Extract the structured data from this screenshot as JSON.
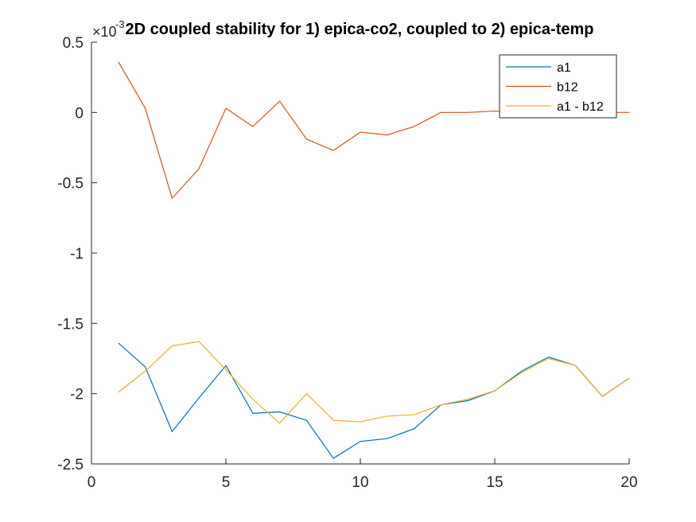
{
  "chart_data": {
    "type": "line",
    "title": "2D coupled stability for 1) epica-co2, coupled to 2) epica-temp",
    "xlabel": "",
    "ylabel": "",
    "xlim": [
      0,
      20
    ],
    "ylim": [
      -2.5,
      0.5
    ],
    "y_exponent_label": "×10",
    "y_exponent_power": "-3",
    "x_ticks": [
      0,
      5,
      10,
      15,
      20
    ],
    "y_ticks": [
      -2.5,
      -2,
      -1.5,
      -1,
      -0.5,
      0,
      0.5
    ],
    "x_tick_labels": [
      "0",
      "5",
      "10",
      "15",
      "20"
    ],
    "y_tick_labels": [
      "-2.5",
      "-2",
      "-1.5",
      "-1",
      "-0.5",
      "0",
      "0.5"
    ],
    "grid": false,
    "legend_position": "top-right",
    "x": [
      1,
      2,
      3,
      4,
      5,
      6,
      7,
      8,
      9,
      10,
      11,
      12,
      13,
      14,
      15,
      16,
      17,
      18,
      19,
      20
    ],
    "series": [
      {
        "name": "a1",
        "color": "#0072BD",
        "values": [
          -1.64,
          -1.81,
          -2.27,
          -2.03,
          -1.8,
          -2.14,
          -2.13,
          -2.19,
          -2.46,
          -2.34,
          -2.32,
          -2.25,
          -2.08,
          -2.05,
          -1.98,
          -1.84,
          -1.74,
          -1.8,
          -2.02,
          -1.89
        ]
      },
      {
        "name": "b12",
        "color": "#D95319",
        "values": [
          0.36,
          0.03,
          -0.61,
          -0.4,
          0.03,
          -0.1,
          0.08,
          -0.19,
          -0.27,
          -0.14,
          -0.16,
          -0.1,
          0.0,
          0.0,
          0.01,
          0.0,
          0.01,
          0.0,
          0.0,
          0.0
        ]
      },
      {
        "name": "a1 - b12",
        "color": "#EDB120",
        "values": [
          -1.99,
          -1.84,
          -1.66,
          -1.63,
          -1.83,
          -2.04,
          -2.21,
          -2.0,
          -2.19,
          -2.2,
          -2.16,
          -2.15,
          -2.08,
          -2.04,
          -1.98,
          -1.85,
          -1.75,
          -1.8,
          -2.02,
          -1.89
        ]
      }
    ]
  }
}
